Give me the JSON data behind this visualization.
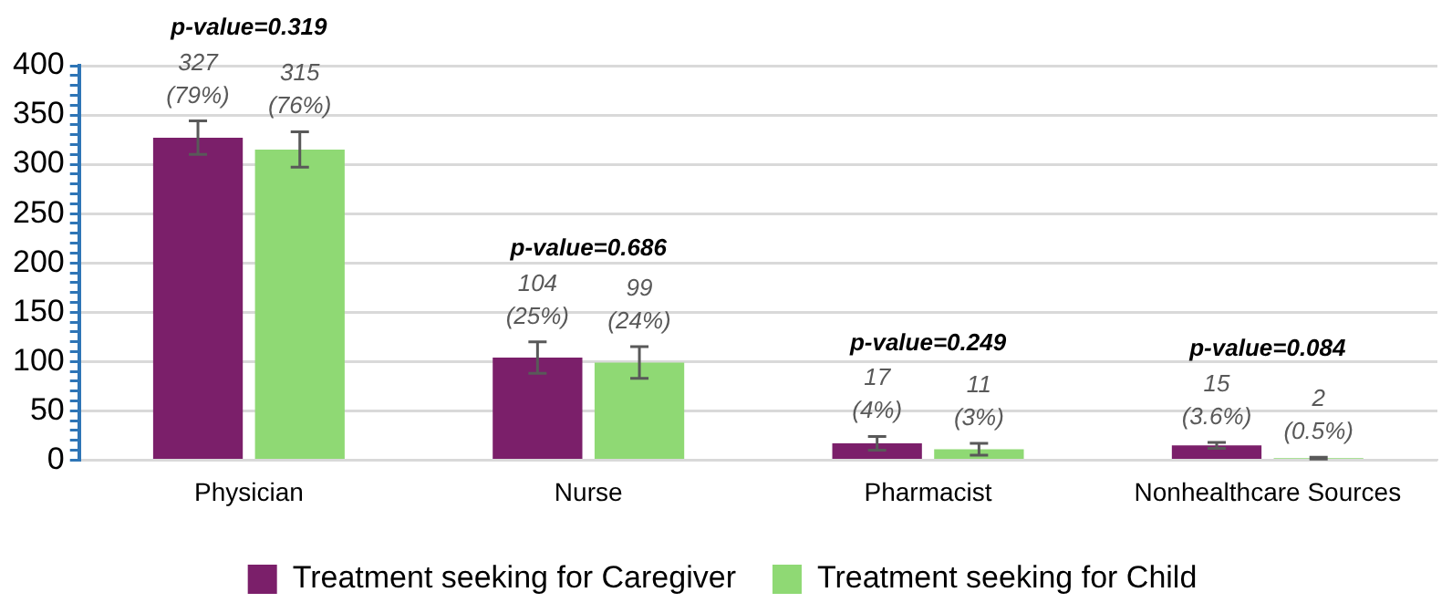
{
  "chart_data": {
    "type": "bar",
    "categories": [
      "Physician",
      "Nurse",
      "Pharmacist",
      "Nonhealthcare Sources"
    ],
    "series": [
      {
        "name": "Treatment seeking for Caregiver",
        "color": "#7b1f6a",
        "values": [
          327,
          104,
          17,
          15
        ],
        "errors": [
          17,
          16,
          7,
          3
        ],
        "value_labels": [
          "327 (79%)",
          "104 (25%)",
          "17 (4%)",
          "15 (3.6%)"
        ]
      },
      {
        "name": "Treatment seeking for Child",
        "color": "#8fd974",
        "values": [
          315,
          99,
          11,
          2
        ],
        "errors": [
          18,
          16,
          6,
          1
        ],
        "value_labels": [
          "315 (76%)",
          "99 (24%)",
          "11 (3%)",
          "2 (0.5%)"
        ]
      }
    ],
    "ylim": [
      0,
      400
    ],
    "yticks": [
      0,
      {
        "value": 10,
        "label": null
      },
      {
        "value": 20,
        "label": null
      },
      {
        "value": 30,
        "label": null
      },
      {
        "value": 40,
        "label": null
      },
      50,
      {
        "value": 60,
        "label": null
      },
      {
        "value": 70,
        "label": null
      },
      {
        "value": 80,
        "label": null
      },
      {
        "value": 90,
        "label": null
      },
      100,
      {
        "value": 110,
        "label": null
      },
      {
        "value": 120,
        "label": null
      },
      {
        "value": 130,
        "label": null
      },
      {
        "value": 140,
        "label": null
      },
      150,
      {
        "value": 160,
        "label": null
      },
      {
        "value": 170,
        "label": null
      },
      {
        "value": 180,
        "label": null
      },
      {
        "value": 190,
        "label": null
      },
      200,
      {
        "value": 210,
        "label": null
      },
      {
        "value": 220,
        "label": null
      },
      {
        "value": 230,
        "label": null
      },
      {
        "value": 240,
        "label": null
      },
      250,
      {
        "value": 260,
        "label": null
      },
      {
        "value": 270,
        "label": null
      },
      {
        "value": 280,
        "label": null
      },
      {
        "value": 290,
        "label": null
      },
      300,
      {
        "value": 310,
        "label": null
      },
      {
        "value": 320,
        "label": null
      },
      {
        "value": 330,
        "label": null
      },
      {
        "value": 340,
        "label": null
      },
      350,
      {
        "value": 360,
        "label": null
      },
      {
        "value": 370,
        "label": null
      },
      {
        "value": 380,
        "label": null
      },
      {
        "value": 390,
        "label": null
      },
      400
    ],
    "grid": "y",
    "legend": "bottom",
    "annotations": [
      "p-value=0.319",
      "p-value=0.686",
      "p-value=0.249",
      "p-value=0.084"
    ]
  }
}
